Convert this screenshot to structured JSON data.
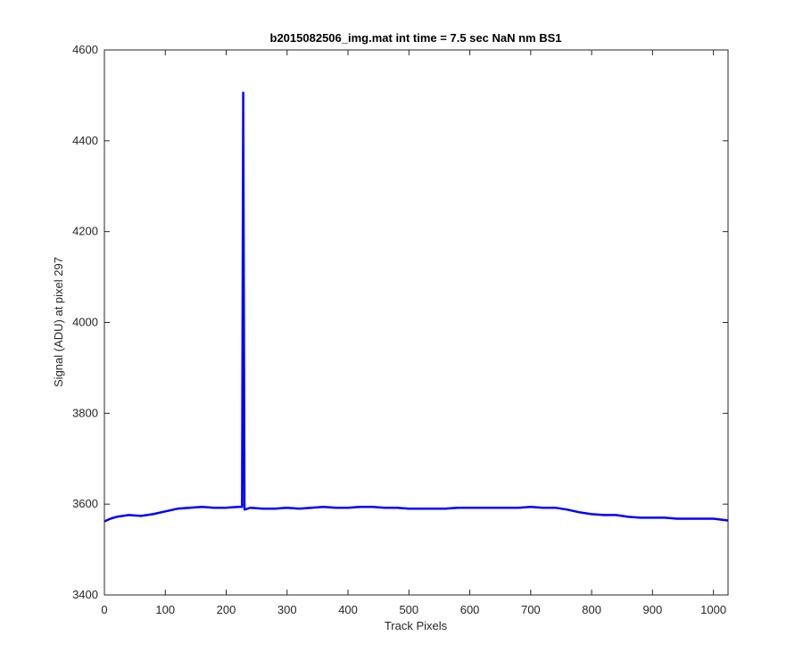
{
  "chart_data": {
    "type": "line",
    "title": "b2015082506_img.mat int time = 7.5 sec  NaN nm BS1",
    "xlabel": "Track Pixels",
    "ylabel": "Signal (ADU) at pixel 297",
    "xlim": [
      0,
      1024
    ],
    "ylim": [
      3400,
      4600
    ],
    "xticks": [
      0,
      100,
      200,
      300,
      400,
      500,
      600,
      700,
      800,
      900,
      1000
    ],
    "yticks": [
      3400,
      3600,
      3800,
      4000,
      4200,
      4400,
      4600
    ],
    "grid": false,
    "series": [
      {
        "color": "#0000ff",
        "x": [
          0,
          10,
          20,
          40,
          60,
          80,
          100,
          120,
          140,
          160,
          180,
          200,
          220,
          226,
          228,
          230,
          240,
          260,
          280,
          300,
          320,
          340,
          360,
          380,
          400,
          420,
          440,
          460,
          480,
          500,
          520,
          540,
          560,
          580,
          600,
          620,
          640,
          660,
          680,
          700,
          720,
          740,
          760,
          780,
          800,
          820,
          840,
          860,
          880,
          900,
          920,
          940,
          960,
          980,
          1000,
          1024
        ],
        "y": [
          3562,
          3568,
          3572,
          3576,
          3574,
          3578,
          3584,
          3590,
          3592,
          3594,
          3592,
          3592,
          3594,
          3594,
          4506,
          3588,
          3592,
          3590,
          3590,
          3592,
          3590,
          3592,
          3594,
          3592,
          3592,
          3594,
          3594,
          3592,
          3592,
          3590,
          3590,
          3590,
          3590,
          3592,
          3592,
          3592,
          3592,
          3592,
          3592,
          3594,
          3592,
          3592,
          3588,
          3582,
          3578,
          3576,
          3576,
          3572,
          3570,
          3570,
          3570,
          3568,
          3568,
          3568,
          3568,
          3564
        ]
      }
    ]
  }
}
